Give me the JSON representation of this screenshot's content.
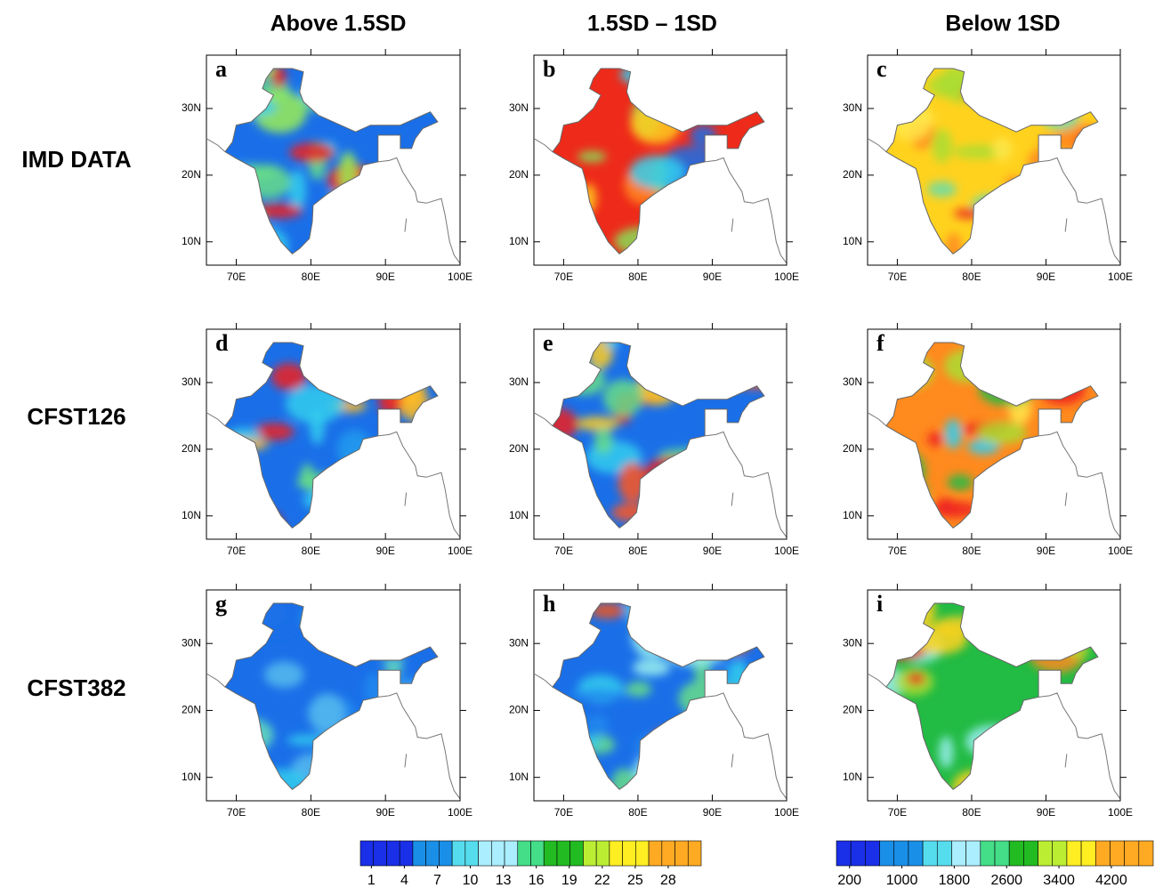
{
  "columns": [
    "Above 1.5SD",
    "1.5SD – 1SD",
    "Below 1SD"
  ],
  "rows": [
    "IMD DATA",
    "CFST126",
    "CFST382"
  ],
  "panels": [
    "a",
    "b",
    "c",
    "d",
    "e",
    "f",
    "g",
    "h",
    "i"
  ],
  "map_axes": {
    "xlim": [
      66,
      100
    ],
    "ylim": [
      6.5,
      38
    ],
    "xticks": [
      {
        "value": 70,
        "label": "70E"
      },
      {
        "value": 80,
        "label": "80E"
      },
      {
        "value": 90,
        "label": "90E"
      },
      {
        "value": 100,
        "label": "100E"
      }
    ],
    "yticks": [
      {
        "value": 10,
        "label": "10N"
      },
      {
        "value": 20,
        "label": "20N"
      },
      {
        "value": 30,
        "label": "30N"
      }
    ]
  },
  "colorbars": [
    {
      "lim": [
        0,
        31
      ],
      "ticks": [
        1,
        4,
        7,
        10,
        13,
        16,
        19,
        22,
        25,
        28
      ]
    },
    {
      "lim": [
        0,
        4840
      ],
      "ticks": [
        200,
        1000,
        1800,
        2600,
        3400,
        4200
      ]
    }
  ]
}
